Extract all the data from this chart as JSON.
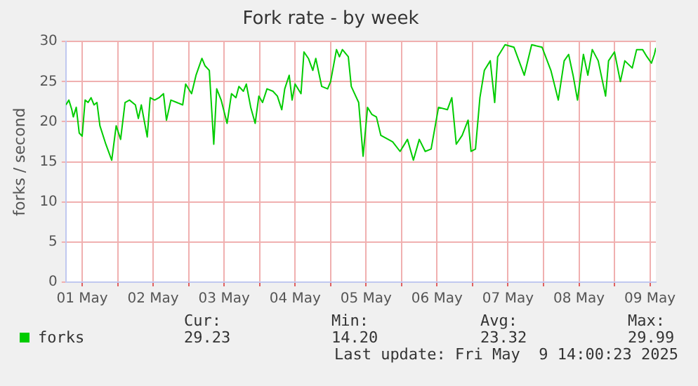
{
  "chart_data": {
    "type": "line",
    "title": "Fork rate - by week",
    "ylabel": "forks / second",
    "x": [
      "2025-05-01T06:30",
      "2025-05-01T07:30",
      "2025-05-01T08:30",
      "2025-05-01T09:00",
      "2025-05-01T10:00",
      "2025-05-01T11:00",
      "2025-05-01T12:00",
      "2025-05-01T13:00",
      "2025-05-01T14:00",
      "2025-05-01T15:00",
      "2025-05-01T16:00",
      "2025-05-01T17:00",
      "2025-05-01T18:00",
      "2025-05-01T20:00",
      "2025-05-01T22:00",
      "2025-05-01T23:30",
      "2025-05-02T01:00",
      "2025-05-02T02:30",
      "2025-05-02T04:00",
      "2025-05-02T06:00",
      "2025-05-02T07:00",
      "2025-05-02T08:00",
      "2025-05-02T10:00",
      "2025-05-02T11:00",
      "2025-05-02T12:30",
      "2025-05-02T14:00",
      "2025-05-02T15:30",
      "2025-05-02T16:30",
      "2025-05-02T18:00",
      "2025-05-02T20:00",
      "2025-05-02T22:00",
      "2025-05-02T23:00",
      "2025-05-03T01:00",
      "2025-05-03T02:30",
      "2025-05-03T04:30",
      "2025-05-03T05:30",
      "2025-05-03T07:00",
      "2025-05-03T08:30",
      "2025-05-03T09:30",
      "2025-05-03T11:00",
      "2025-05-03T13:00",
      "2025-05-03T14:30",
      "2025-05-03T16:00",
      "2025-05-03T17:00",
      "2025-05-03T18:30",
      "2025-05-03T19:30",
      "2025-05-03T21:00",
      "2025-05-03T22:30",
      "2025-05-03T23:45",
      "2025-05-04T01:00",
      "2025-05-04T02:30",
      "2025-05-04T04:30",
      "2025-05-04T06:00",
      "2025-05-04T07:30",
      "2025-05-04T08:30",
      "2025-05-04T10:00",
      "2025-05-04T11:00",
      "2025-05-04T12:00",
      "2025-05-04T14:00",
      "2025-05-04T15:00",
      "2025-05-04T16:30",
      "2025-05-04T18:00",
      "2025-05-04T19:00",
      "2025-05-04T21:00",
      "2025-05-04T23:00",
      "2025-05-05T00:00",
      "2025-05-05T02:00",
      "2025-05-05T03:00",
      "2025-05-05T04:00",
      "2025-05-05T06:00",
      "2025-05-05T07:00",
      "2025-05-05T09:30",
      "2025-05-05T11:00",
      "2025-05-05T12:30",
      "2025-05-05T14:00",
      "2025-05-05T15:30",
      "2025-05-05T17:00",
      "2025-05-05T19:30",
      "2025-05-05T21:00",
      "2025-05-05T23:30",
      "2025-05-06T02:00",
      "2025-05-06T04:00",
      "2025-05-06T06:00",
      "2025-05-06T08:00",
      "2025-05-06T10:00",
      "2025-05-06T12:30",
      "2025-05-06T15:30",
      "2025-05-06T17:00",
      "2025-05-06T18:30",
      "2025-05-06T20:30",
      "2025-05-06T22:30",
      "2025-05-06T23:30",
      "2025-05-07T01:00",
      "2025-05-07T02:30",
      "2025-05-07T04:00",
      "2025-05-07T06:00",
      "2025-05-07T07:30",
      "2025-05-07T08:30",
      "2025-05-07T11:00",
      "2025-05-07T14:00",
      "2025-05-07T17:30",
      "2025-05-07T20:00",
      "2025-05-07T23:30",
      "2025-05-08T02:30",
      "2025-05-08T05:00",
      "2025-05-08T07:00",
      "2025-05-08T08:30",
      "2025-05-08T10:00",
      "2025-05-08T11:30",
      "2025-05-08T13:30",
      "2025-05-08T15:00",
      "2025-05-08T16:30",
      "2025-05-08T18:30",
      "2025-05-08T21:00",
      "2025-05-08T22:00",
      "2025-05-09T00:00",
      "2025-05-09T02:00",
      "2025-05-09T03:30",
      "2025-05-09T06:00",
      "2025-05-09T07:30",
      "2025-05-09T09:30",
      "2025-05-09T11:00",
      "2025-05-09T12:30",
      "2025-05-09T13:30",
      "2025-05-09T14:00"
    ],
    "series": [
      {
        "name": "forks",
        "color": "#00cc00",
        "values": [
          22.1,
          22.7,
          21.5,
          20.6,
          21.8,
          18.6,
          18.2,
          22.7,
          22.4,
          23.0,
          22.1,
          22.4,
          19.5,
          17.2,
          15.2,
          19.5,
          17.8,
          22.4,
          22.7,
          22.1,
          20.4,
          22.1,
          18.1,
          23.0,
          22.7,
          23.0,
          23.5,
          20.2,
          22.7,
          22.4,
          22.1,
          24.7,
          23.5,
          25.8,
          27.9,
          27.0,
          26.4,
          17.2,
          24.1,
          22.7,
          19.8,
          23.5,
          23.0,
          24.4,
          23.8,
          24.7,
          21.8,
          19.8,
          23.2,
          22.4,
          24.1,
          23.8,
          23.2,
          21.5,
          24.1,
          25.8,
          22.7,
          24.7,
          23.5,
          28.7,
          27.9,
          26.4,
          27.9,
          24.4,
          24.1,
          25.0,
          29.0,
          28.1,
          29.0,
          28.1,
          24.4,
          22.4,
          15.7,
          21.8,
          20.9,
          20.6,
          18.3,
          17.8,
          17.5,
          16.3,
          17.8,
          15.2,
          17.8,
          16.3,
          16.6,
          21.8,
          21.5,
          23.0,
          17.2,
          18.3,
          20.2,
          16.3,
          16.6,
          23.0,
          26.4,
          27.6,
          22.4,
          28.1,
          29.6,
          29.3,
          25.8,
          29.6,
          29.3,
          26.4,
          22.7,
          27.6,
          28.4,
          25.8,
          22.7,
          28.4,
          25.8,
          29.0,
          27.6,
          23.2,
          27.6,
          28.7,
          25.0,
          27.6,
          26.7,
          29.0,
          29.0,
          28.1,
          27.3,
          28.4,
          29.2
        ]
      }
    ],
    "xlim": [
      "2025-05-01T06:30",
      "2025-05-09T14:00"
    ],
    "xticks": [
      {
        "value": "2025-05-01T12:00",
        "label": "01 May"
      },
      {
        "value": "2025-05-02T00:00",
        "label": null
      },
      {
        "value": "2025-05-02T12:00",
        "label": "02 May"
      },
      {
        "value": "2025-05-03T00:00",
        "label": null
      },
      {
        "value": "2025-05-03T12:00",
        "label": "03 May"
      },
      {
        "value": "2025-05-04T00:00",
        "label": null
      },
      {
        "value": "2025-05-04T12:00",
        "label": "04 May"
      },
      {
        "value": "2025-05-05T00:00",
        "label": null
      },
      {
        "value": "2025-05-05T12:00",
        "label": "05 May"
      },
      {
        "value": "2025-05-06T00:00",
        "label": null
      },
      {
        "value": "2025-05-06T12:00",
        "label": "06 May"
      },
      {
        "value": "2025-05-07T00:00",
        "label": null
      },
      {
        "value": "2025-05-07T12:00",
        "label": "07 May"
      },
      {
        "value": "2025-05-08T00:00",
        "label": null
      },
      {
        "value": "2025-05-08T12:00",
        "label": "08 May"
      },
      {
        "value": "2025-05-09T00:00",
        "label": null
      },
      {
        "value": "2025-05-09T12:00",
        "label": "09 May"
      }
    ],
    "ylim": [
      0,
      30
    ],
    "yticks": [
      0,
      5,
      10,
      15,
      20,
      25,
      30
    ],
    "grid": true,
    "legend": "bottom left",
    "marker": "none",
    "line_style": "solid",
    "annotations": [
      "Cur:",
      "Min:",
      "Avg:",
      "Max:",
      "29.23",
      "14.20",
      "23.32",
      "29.99",
      "Last update: Fri May  9 14:00:23 2025"
    ]
  }
}
